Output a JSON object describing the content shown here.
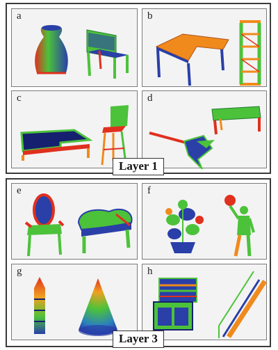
{
  "layers": [
    {
      "label": "Layer 1",
      "panels": [
        {
          "id": "a",
          "objects": [
            "vase",
            "chair"
          ]
        },
        {
          "id": "b",
          "objects": [
            "desk",
            "shelf"
          ]
        },
        {
          "id": "c",
          "objects": [
            "table",
            "bar-stool"
          ]
        },
        {
          "id": "d",
          "objects": [
            "guitar",
            "bench"
          ]
        }
      ]
    },
    {
      "label": "Layer 3",
      "panels": [
        {
          "id": "e",
          "objects": [
            "armchair",
            "piano"
          ]
        },
        {
          "id": "f",
          "objects": [
            "plant",
            "person"
          ]
        },
        {
          "id": "g",
          "objects": [
            "tower",
            "cone"
          ]
        },
        {
          "id": "h",
          "objects": [
            "organ",
            "staircase"
          ]
        }
      ]
    }
  ],
  "colors": {
    "red": "#e0301e",
    "orange": "#f08a1c",
    "green": "#4cc23a",
    "blue": "#2a3fa8",
    "dark_blue": "#15206e"
  }
}
